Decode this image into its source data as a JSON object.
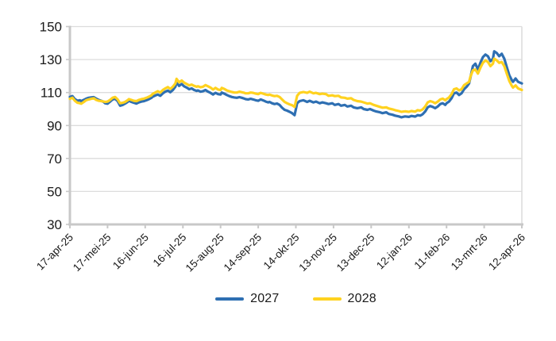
{
  "chart_data": {
    "type": "line",
    "title": "",
    "grid": true,
    "legend_position": "bottom-center",
    "x_axis": {
      "tick_days": [
        0,
        30,
        60,
        90,
        120,
        150,
        180,
        210,
        240,
        270,
        300,
        330,
        360
      ],
      "tick_labels": [
        "17-apr-25",
        "17-mei-25",
        "16-jun-25",
        "16-jul-25",
        "15-aug-25",
        "14-sep-25",
        "14-okt-25",
        "13-nov-25",
        "13-dec-25",
        "12-jan-26",
        "11-feb-26",
        "13-mrt-26",
        "12-apr-26"
      ]
    },
    "y_axis": {
      "ticks": [
        150,
        130,
        110,
        90,
        70,
        50,
        30
      ],
      "min": 30,
      "max": 150
    },
    "days": [
      0,
      2,
      4,
      6,
      8,
      9,
      11,
      13,
      15,
      17,
      19,
      21,
      23,
      25,
      27,
      28,
      30,
      32,
      34,
      36,
      38,
      40,
      42,
      44,
      46,
      47,
      49,
      51,
      53,
      55,
      57,
      59,
      61,
      63,
      65,
      66,
      68,
      70,
      72,
      74,
      76,
      78,
      80,
      82,
      84,
      85,
      87,
      89,
      91,
      93,
      95,
      97,
      99,
      101,
      102,
      104,
      106,
      108,
      110,
      112,
      114,
      116,
      118,
      120,
      121,
      123,
      125,
      127,
      129,
      131,
      133,
      135,
      137,
      139,
      140,
      142,
      144,
      146,
      148,
      150,
      152,
      154,
      156,
      158,
      159,
      161,
      163,
      165,
      167,
      169,
      171,
      173,
      175,
      177,
      179,
      181,
      183,
      186,
      189,
      191,
      194,
      196,
      199,
      201,
      204,
      206,
      209,
      211,
      214,
      216,
      219,
      221,
      224,
      226,
      229,
      232,
      234,
      237,
      239,
      242,
      244,
      247,
      249,
      252,
      254,
      257,
      259,
      262,
      264,
      267,
      270,
      272,
      275,
      277,
      279,
      281,
      283,
      285,
      287,
      289,
      291,
      293,
      295,
      297,
      299,
      300,
      302,
      304,
      306,
      308,
      310,
      312,
      314,
      316,
      318,
      319,
      321,
      323,
      325,
      327,
      329,
      331,
      333,
      335,
      337,
      338,
      340,
      342,
      344,
      346,
      348,
      350,
      352,
      353,
      355,
      357,
      360
    ],
    "series": [
      {
        "name": "2027",
        "color": "#2e6fb2",
        "values": [
          107.3,
          107.8,
          106,
          105,
          105.3,
          104.8,
          105.5,
          106.3,
          106.8,
          107,
          107.2,
          106.3,
          105.5,
          105,
          104.2,
          103.5,
          103.2,
          104.5,
          105.8,
          106.2,
          104.8,
          102,
          102.5,
          103.3,
          104.3,
          105,
          104.3,
          103.8,
          103.3,
          104,
          104.5,
          104.8,
          105.3,
          106,
          106.8,
          107.5,
          108.2,
          108.8,
          108,
          109.5,
          110.5,
          111.2,
          110.2,
          111.5,
          113.5,
          116.2,
          114,
          115.2,
          113.8,
          113,
          112,
          112.5,
          111.5,
          111,
          111.3,
          110.5,
          110.8,
          111.5,
          110.5,
          109.8,
          108.8,
          109.8,
          109,
          108.8,
          110,
          109.3,
          108.5,
          107.8,
          107.3,
          107,
          106.8,
          107.2,
          106.8,
          106.3,
          106,
          105.8,
          106.2,
          105.8,
          105.3,
          105,
          105.8,
          105.2,
          104.5,
          104,
          104.3,
          103.5,
          103,
          103.3,
          102.5,
          100.8,
          99.5,
          99,
          98.3,
          97.5,
          96.3,
          103.5,
          104.8,
          105.3,
          104.3,
          105,
          104,
          104.5,
          103.5,
          104,
          103.5,
          103,
          103.5,
          102.5,
          103,
          102,
          102.5,
          101.5,
          102,
          101,
          100.5,
          101,
          100,
          99.5,
          100,
          99,
          98.5,
          98,
          97.5,
          98,
          97,
          96.5,
          96,
          95.5,
          95,
          95.5,
          95.2,
          95.8,
          95.4,
          96.3,
          96,
          96.8,
          98.5,
          101,
          101.8,
          101.3,
          100.5,
          101.5,
          103,
          103.5,
          102.5,
          103.5,
          104.5,
          106.5,
          109.5,
          110,
          108.5,
          109.5,
          112,
          113.5,
          115.5,
          119,
          126,
          127.5,
          124,
          128,
          131.5,
          133,
          132,
          129,
          130.5,
          135,
          134,
          132,
          133.5,
          130.5,
          125.5,
          120.5,
          117.5,
          116.5,
          118.5,
          116.5,
          115.5
        ]
      },
      {
        "name": "2028",
        "color": "#ffd21f",
        "values": [
          106.2,
          106.8,
          105,
          103.8,
          103.5,
          103.2,
          104.2,
          105.3,
          105.8,
          106.2,
          106.5,
          105.5,
          105,
          104.8,
          104.5,
          104.3,
          104.5,
          105.5,
          106.8,
          107.3,
          105.8,
          103.5,
          103.8,
          104.3,
          105.3,
          106,
          105.5,
          105,
          104.8,
          105.5,
          106,
          106.3,
          106.8,
          107.5,
          108.3,
          109.2,
          110,
          110.8,
          110,
          111.5,
          112.5,
          113.3,
          112.2,
          113.5,
          115.5,
          118.3,
          116.2,
          117.3,
          116,
          115.2,
          114.3,
          114.8,
          114,
          113.5,
          113.8,
          113.2,
          113.5,
          114.5,
          113.8,
          113,
          111.8,
          112.8,
          111.8,
          111.5,
          112.8,
          112.2,
          111.3,
          110.8,
          110.3,
          110,
          110,
          110.5,
          110.2,
          109.8,
          109.5,
          109.5,
          110,
          109.8,
          109.3,
          109,
          109.8,
          109.3,
          108.8,
          108.5,
          108.8,
          108.2,
          107.8,
          108,
          107.3,
          105.8,
          104.3,
          103.5,
          102.8,
          102.3,
          101.3,
          108,
          109.8,
          110.3,
          109.8,
          110.5,
          109.5,
          109.8,
          109,
          109.3,
          109,
          108,
          108.3,
          107.8,
          108,
          107,
          106.8,
          106.3,
          106.5,
          105.5,
          104.8,
          104.5,
          104,
          103.3,
          103.5,
          102.5,
          102,
          101.3,
          100.8,
          101,
          100.3,
          99.8,
          99.3,
          98.8,
          98.3,
          98.6,
          98.3,
          98.8,
          98.4,
          99.3,
          99,
          99.8,
          101.5,
          104,
          104.8,
          104.3,
          103.5,
          104.5,
          105.8,
          106.3,
          105.3,
          106,
          107,
          109,
          112,
          112.5,
          111.3,
          112,
          114.5,
          115.5,
          116.5,
          119.5,
          123.5,
          124,
          121.5,
          125,
          128,
          129.5,
          128.5,
          126,
          127.5,
          130.5,
          129.5,
          128,
          128.5,
          126,
          121.5,
          117,
          114,
          113,
          114.3,
          112.5,
          111.5
        ]
      }
    ]
  },
  "colors": {
    "gridline": "#dcdcdc",
    "axis": "#c8c8c8",
    "text": "#1a1a1a",
    "background": "#ffffff"
  }
}
